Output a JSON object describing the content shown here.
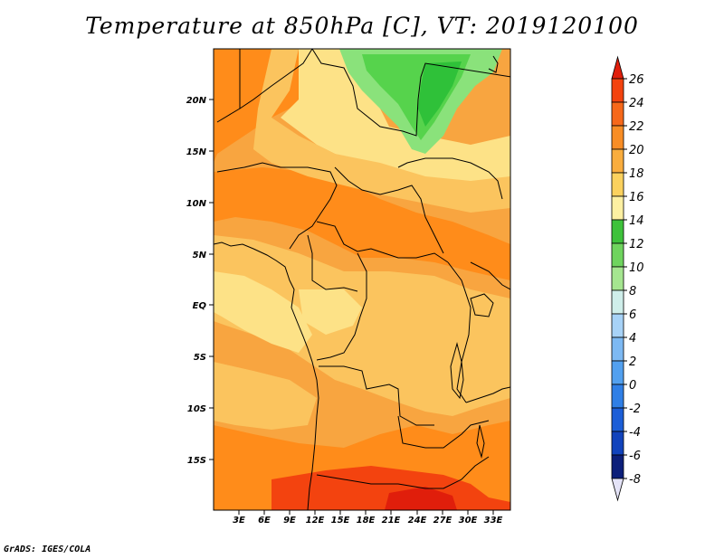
{
  "title": "Temperature at 850hPa [C], VT: 2019120100",
  "footer": "GrADS: IGES/COLA",
  "colors": {
    "very_warm": "#ff8c1a",
    "warm": "#f8a540",
    "mild": "#fbc45e",
    "cool": "#fde287",
    "hottest": "#e43b13",
    "green_light": "#8ae27b",
    "green_mid": "#56d34c",
    "green_dark": "#2fc139",
    "coast": "#000000"
  },
  "map": {
    "lon_labels": [
      "3E",
      "6E",
      "9E",
      "12E",
      "15E",
      "18E",
      "21E",
      "24E",
      "27E",
      "30E",
      "33E"
    ],
    "lat_labels": [
      "20N",
      "15N",
      "10N",
      "5N",
      "EQ",
      "5S",
      "10S",
      "15S"
    ]
  },
  "colorbar": {
    "levels": [
      "26",
      "24",
      "22",
      "20",
      "18",
      "16",
      "14",
      "12",
      "10",
      "8",
      "6",
      "4",
      "2",
      "0",
      "-2",
      "-4",
      "-6",
      "-8"
    ],
    "colors": [
      "#e01e0b",
      "#f3430f",
      "#f6681a",
      "#f88d25",
      "#f9ad3e",
      "#fbd15e",
      "#fdf0a2",
      "#3ec23b",
      "#6fd45e",
      "#a5e690",
      "#cfeeea",
      "#a7d2f7",
      "#7db9f3",
      "#52a0ef",
      "#2f7fe6",
      "#1c5ed7",
      "#1143bc",
      "#0c1f7a",
      "#e4e3f7"
    ]
  }
}
